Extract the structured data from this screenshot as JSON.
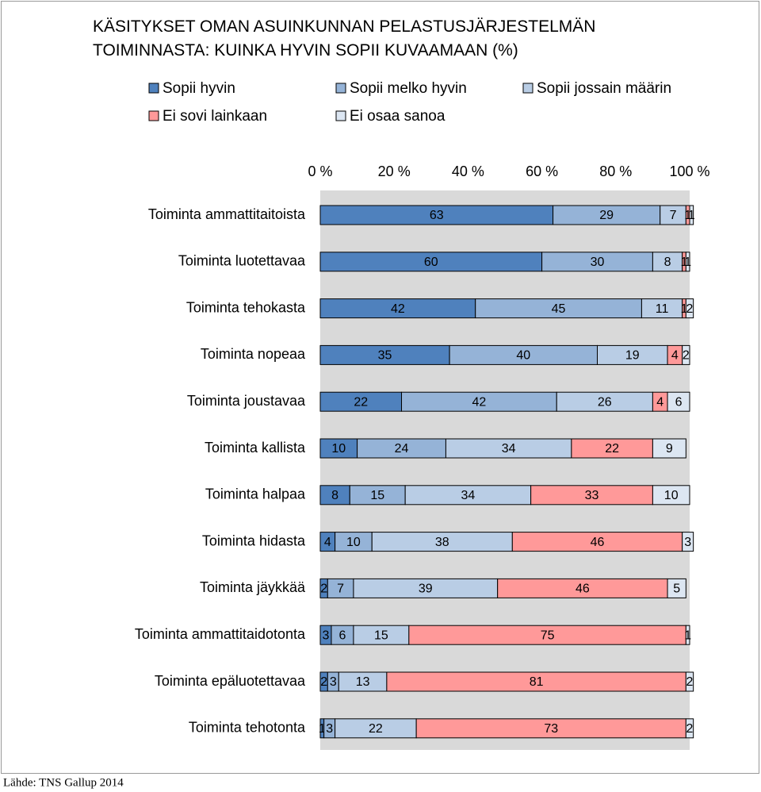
{
  "chart_data": {
    "type": "bar",
    "orientation": "horizontal",
    "stacked": true,
    "title": "KÄSITYKSET OMAN ASUINKUNNAN PELASTUSJÄRJESTELMÄN TOIMINNASTA: KUINKA HYVIN SOPII KUVAAMAAN (%)",
    "source": "Lähde: TNS Gallup 2014",
    "categories": [
      "Toiminta ammattitaitoista",
      "Toiminta luotettavaa",
      "Toiminta tehokasta",
      "Toiminta nopeaa",
      "Toiminta joustavaa",
      "Toiminta kallista",
      "Toiminta halpaa",
      "Toiminta hidasta",
      "Toiminta jäykkää",
      "Toiminta ammattitaidotonta",
      "Toiminta epäluotettavaa",
      "Toiminta tehotonta"
    ],
    "series": [
      {
        "name": "Sopii hyvin",
        "color": "#4f81bd",
        "values": [
          63,
          60,
          42,
          35,
          22,
          10,
          8,
          4,
          2,
          3,
          2,
          1
        ]
      },
      {
        "name": "Sopii melko hyvin",
        "color": "#95b3d7",
        "values": [
          29,
          30,
          45,
          40,
          42,
          24,
          15,
          10,
          7,
          6,
          3,
          3
        ]
      },
      {
        "name": "Sopii jossain määrin",
        "color": "#b9cde5",
        "values": [
          7,
          8,
          11,
          19,
          26,
          34,
          34,
          38,
          39,
          15,
          13,
          22
        ]
      },
      {
        "name": "Ei sovi lainkaan",
        "color": "#ff9999",
        "values": [
          1,
          1,
          1,
          4,
          4,
          22,
          33,
          46,
          46,
          75,
          81,
          73
        ]
      },
      {
        "name": "Ei osaa sanoa",
        "color": "#dce6f2",
        "values": [
          1,
          1,
          2,
          2,
          6,
          9,
          10,
          3,
          5,
          1,
          2,
          2
        ]
      }
    ],
    "xlim": [
      0,
      100
    ],
    "xticks": [
      {
        "value": 0,
        "label": "0 %"
      },
      {
        "value": 20,
        "label": "20 %"
      },
      {
        "value": 40,
        "label": "40 %"
      },
      {
        "value": 60,
        "label": "60 %"
      },
      {
        "value": 80,
        "label": "80 %"
      },
      {
        "value": 100,
        "label": "100 %"
      }
    ]
  }
}
